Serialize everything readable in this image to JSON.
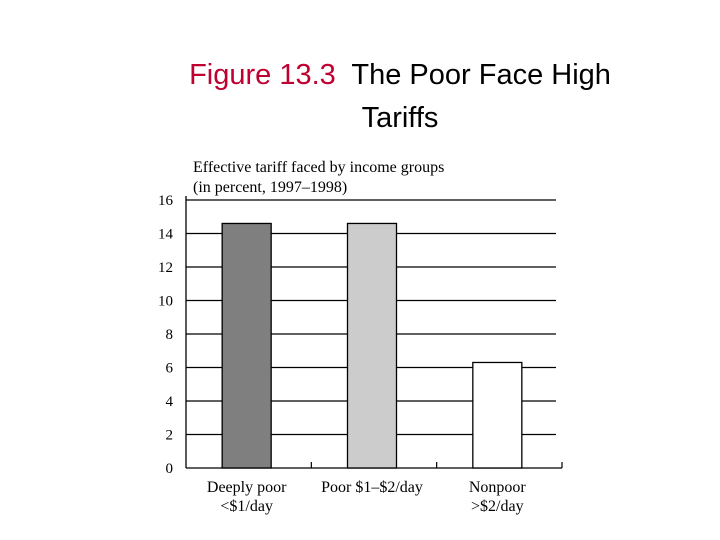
{
  "slide": {
    "figure_label": "Figure 13.3",
    "title_line1": "The Poor Face High",
    "title_line2": "Tariffs"
  },
  "chart_data": {
    "type": "bar",
    "title": "Effective tariff faced by income groups",
    "subtitle": "(in percent, 1997–1998)",
    "categories": [
      [
        "Deeply poor",
        "<$1/day"
      ],
      [
        "Poor $1–$2/day"
      ],
      [
        "Nonpoor",
        ">$2/day"
      ]
    ],
    "values": [
      14.6,
      14.6,
      6.3
    ],
    "bar_colors": [
      "#7f7f7f",
      "#cccccc",
      "#ffffff"
    ],
    "yticks": [
      0,
      2,
      4,
      6,
      8,
      10,
      12,
      14,
      16
    ],
    "ylim": [
      0,
      16
    ],
    "grid": true
  }
}
